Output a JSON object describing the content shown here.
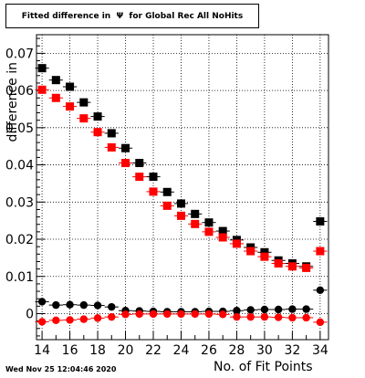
{
  "chart_data": {
    "type": "scatter",
    "title": "Fitted difference in  Ψ  for Global Rec All NoHits",
    "xlabel": "No. of Fit Points",
    "ylabel": "difference in",
    "xlim": [
      13.6,
      34.6
    ],
    "ylim": [
      -0.007,
      0.075
    ],
    "x_ticks": [
      "14",
      "16",
      "18",
      "20",
      "22",
      "24",
      "26",
      "28",
      "30",
      "32",
      "34"
    ],
    "y_ticks": [
      "0",
      "0.01",
      "0.02",
      "0.03",
      "0.04",
      "0.05",
      "0.06",
      "0.07"
    ],
    "grid": true,
    "x": [
      14,
      15,
      16,
      17,
      18,
      19,
      20,
      21,
      22,
      23,
      24,
      25,
      26,
      27,
      28,
      29,
      30,
      31,
      32,
      33,
      34
    ],
    "series": [
      {
        "color": "#000000",
        "marker": "square",
        "values": [
          0.066,
          0.0628,
          0.061,
          0.0568,
          0.053,
          0.0485,
          0.0445,
          0.0405,
          0.0368,
          0.0327,
          0.0296,
          0.0268,
          0.0245,
          0.0222,
          0.0198,
          0.0178,
          0.0165,
          0.0143,
          0.0135,
          0.0127,
          0.0248
        ]
      },
      {
        "color": "#ff0000",
        "marker": "square",
        "values": [
          0.0602,
          0.058,
          0.0557,
          0.0525,
          0.0488,
          0.0447,
          0.0405,
          0.0368,
          0.0328,
          0.029,
          0.0263,
          0.0241,
          0.022,
          0.0205,
          0.0188,
          0.0168,
          0.0153,
          0.0135,
          0.0127,
          0.0123,
          0.0168
        ]
      },
      {
        "color": "#000000",
        "marker": "circle",
        "values": [
          0.0032,
          0.0023,
          0.0024,
          0.0023,
          0.0022,
          0.0018,
          0.0008,
          0.0007,
          0.0006,
          0.0005,
          0.0005,
          0.0005,
          0.0006,
          0.0006,
          0.0008,
          0.001,
          0.0011,
          0.0011,
          0.0012,
          0.0012,
          0.0063
        ]
      },
      {
        "color": "#ff0000",
        "marker": "circle",
        "values": [
          -0.0022,
          -0.0018,
          -0.0017,
          -0.0015,
          -0.0012,
          -0.0009,
          -0.0002,
          -0.0001,
          -0.0001,
          -0.0001,
          -0.0001,
          -0.0001,
          -0.0001,
          -0.0002,
          -0.0009,
          -0.0009,
          -0.0009,
          -0.001,
          -0.0011,
          -0.0011,
          -0.0023
        ]
      }
    ]
  },
  "footer": {
    "timestamp": "Wed Nov 25 12:04:46 2020",
    "x_axis_title": "No. of Fit Points"
  }
}
